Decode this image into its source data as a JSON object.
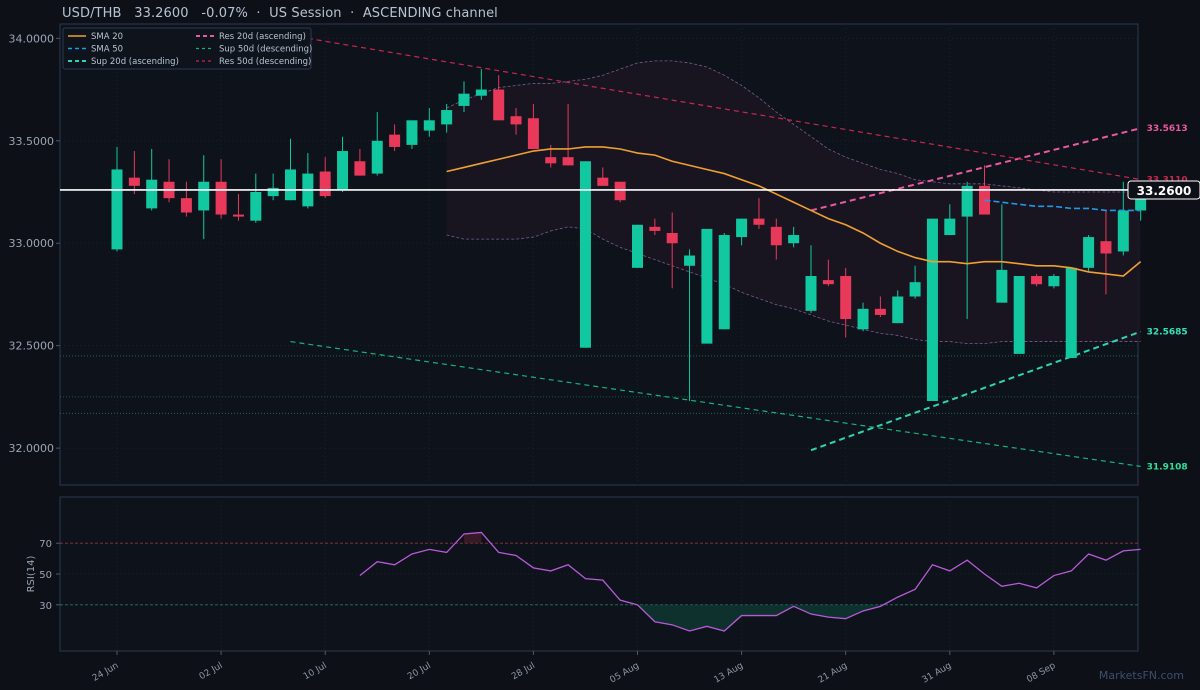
{
  "header": {
    "symbol": "USD/THB",
    "price": "33.2600",
    "change": "-0.07%",
    "session": "US Session",
    "channel": "ASCENDING channel"
  },
  "watermark": "MarketsFN.com",
  "colors": {
    "background": "#0d1017",
    "up": "#12c8a0",
    "down": "#e8395a",
    "sma20": "#f0a030",
    "sma50": "#1e9be8",
    "sup20": "#2dd4b0",
    "res20": "#e85aa0",
    "sup50": "#18b27a",
    "res50": "#c8284e",
    "rsi": "#b85ad8",
    "price_line": "#ffffff",
    "band": "#7a5a90"
  },
  "chart_data": [
    {
      "type": "candlestick",
      "x_tick_labels": [
        "24 Jun",
        "02 Jul",
        "10 Jul",
        "20 Jul",
        "28 Jul",
        "05 Aug",
        "13 Aug",
        "21 Aug",
        "31 Aug",
        "08 Sep"
      ],
      "x_tick_index": [
        0,
        6,
        12,
        18,
        24,
        30,
        36,
        42,
        48,
        54
      ],
      "y_tick_labels": [
        "32.0000",
        "32.5000",
        "33.0000",
        "33.5000",
        "34.0000"
      ],
      "ylim": [
        31.82,
        34.07
      ],
      "candles": [
        {
          "o": 32.97,
          "h": 33.47,
          "l": 32.96,
          "c": 33.36
        },
        {
          "o": 33.32,
          "h": 33.45,
          "l": 33.24,
          "c": 33.28
        },
        {
          "o": 33.17,
          "h": 33.46,
          "l": 33.16,
          "c": 33.31
        },
        {
          "o": 33.3,
          "h": 33.41,
          "l": 33.2,
          "c": 33.22
        },
        {
          "o": 33.22,
          "h": 33.3,
          "l": 33.13,
          "c": 33.15
        },
        {
          "o": 33.16,
          "h": 33.43,
          "l": 33.02,
          "c": 33.3
        },
        {
          "o": 33.3,
          "h": 33.41,
          "l": 33.12,
          "c": 33.14
        },
        {
          "o": 33.14,
          "h": 33.24,
          "l": 33.11,
          "c": 33.13
        },
        {
          "o": 33.11,
          "h": 33.34,
          "l": 33.1,
          "c": 33.25
        },
        {
          "o": 33.23,
          "h": 33.34,
          "l": 33.21,
          "c": 33.27
        },
        {
          "o": 33.21,
          "h": 33.51,
          "l": 33.21,
          "c": 33.36
        },
        {
          "o": 33.18,
          "h": 33.44,
          "l": 33.17,
          "c": 33.34
        },
        {
          "o": 33.35,
          "h": 33.42,
          "l": 33.22,
          "c": 33.23
        },
        {
          "o": 33.26,
          "h": 33.52,
          "l": 33.25,
          "c": 33.45
        },
        {
          "o": 33.4,
          "h": 33.46,
          "l": 33.33,
          "c": 33.33
        },
        {
          "o": 33.34,
          "h": 33.64,
          "l": 33.33,
          "c": 33.5
        },
        {
          "o": 33.53,
          "h": 33.58,
          "l": 33.45,
          "c": 33.47
        },
        {
          "o": 33.48,
          "h": 33.59,
          "l": 33.46,
          "c": 33.6
        },
        {
          "o": 33.55,
          "h": 33.66,
          "l": 33.52,
          "c": 33.6
        },
        {
          "o": 33.58,
          "h": 33.68,
          "l": 33.54,
          "c": 33.65
        },
        {
          "o": 33.67,
          "h": 33.79,
          "l": 33.64,
          "c": 33.73
        },
        {
          "o": 33.72,
          "h": 33.85,
          "l": 33.7,
          "c": 33.75
        },
        {
          "o": 33.75,
          "h": 33.82,
          "l": 33.6,
          "c": 33.6
        },
        {
          "o": 33.62,
          "h": 33.66,
          "l": 33.53,
          "c": 33.58
        },
        {
          "o": 33.61,
          "h": 33.68,
          "l": 33.46,
          "c": 33.46
        },
        {
          "o": 33.42,
          "h": 33.48,
          "l": 33.37,
          "c": 33.39
        },
        {
          "o": 33.42,
          "h": 33.68,
          "l": 33.38,
          "c": 33.38
        },
        {
          "o": 32.49,
          "h": 33.4,
          "l": 32.49,
          "c": 33.4
        },
        {
          "o": 33.32,
          "h": 33.37,
          "l": 33.28,
          "c": 33.28
        },
        {
          "o": 33.3,
          "h": 33.3,
          "l": 33.2,
          "c": 33.21
        },
        {
          "o": 32.88,
          "h": 33.09,
          "l": 32.88,
          "c": 33.09
        },
        {
          "o": 33.08,
          "h": 33.12,
          "l": 33.04,
          "c": 33.06
        },
        {
          "o": 33.05,
          "h": 33.15,
          "l": 32.78,
          "c": 33.0
        },
        {
          "o": 32.89,
          "h": 32.97,
          "l": 32.23,
          "c": 32.94
        },
        {
          "o": 32.51,
          "h": 33.07,
          "l": 32.51,
          "c": 33.07
        },
        {
          "o": 32.58,
          "h": 33.05,
          "l": 32.58,
          "c": 33.04
        },
        {
          "o": 33.03,
          "h": 33.12,
          "l": 32.99,
          "c": 33.12
        },
        {
          "o": 33.12,
          "h": 33.22,
          "l": 33.07,
          "c": 33.09
        },
        {
          "o": 33.08,
          "h": 33.12,
          "l": 32.92,
          "c": 32.99
        },
        {
          "o": 33.0,
          "h": 33.08,
          "l": 32.98,
          "c": 33.04
        },
        {
          "o": 32.67,
          "h": 32.99,
          "l": 32.66,
          "c": 32.84
        },
        {
          "o": 32.82,
          "h": 32.92,
          "l": 32.79,
          "c": 32.8
        },
        {
          "o": 32.84,
          "h": 32.88,
          "l": 32.54,
          "c": 32.63
        },
        {
          "o": 32.58,
          "h": 32.71,
          "l": 32.57,
          "c": 32.68
        },
        {
          "o": 32.68,
          "h": 32.74,
          "l": 32.64,
          "c": 32.65
        },
        {
          "o": 32.61,
          "h": 32.77,
          "l": 32.61,
          "c": 32.74
        },
        {
          "o": 32.74,
          "h": 32.89,
          "l": 32.73,
          "c": 32.81
        },
        {
          "o": 32.23,
          "h": 33.12,
          "l": 32.23,
          "c": 33.12
        },
        {
          "o": 33.04,
          "h": 33.19,
          "l": 33.04,
          "c": 33.12
        },
        {
          "o": 33.13,
          "h": 33.3,
          "l": 32.63,
          "c": 33.28
        },
        {
          "o": 33.28,
          "h": 33.38,
          "l": 33.14,
          "c": 33.14
        },
        {
          "o": 32.71,
          "h": 33.19,
          "l": 32.71,
          "c": 32.87
        },
        {
          "o": 32.46,
          "h": 32.84,
          "l": 32.46,
          "c": 32.84
        },
        {
          "o": 32.84,
          "h": 32.85,
          "l": 32.79,
          "c": 32.8
        },
        {
          "o": 32.79,
          "h": 32.85,
          "l": 32.78,
          "c": 32.84
        },
        {
          "o": 32.44,
          "h": 32.88,
          "l": 32.44,
          "c": 32.88
        },
        {
          "o": 32.88,
          "h": 33.04,
          "l": 32.86,
          "c": 33.03
        },
        {
          "o": 33.01,
          "h": 33.16,
          "l": 32.75,
          "c": 32.95
        },
        {
          "o": 32.96,
          "h": 33.3,
          "l": 32.94,
          "c": 33.16
        },
        {
          "o": 33.16,
          "h": 33.3,
          "l": 33.11,
          "c": 33.29
        }
      ],
      "sma20": {
        "start": 19,
        "values": [
          33.35,
          33.37,
          33.39,
          33.41,
          33.43,
          33.45,
          33.46,
          33.46,
          33.47,
          33.47,
          33.46,
          33.44,
          33.43,
          33.4,
          33.38,
          33.36,
          33.34,
          33.31,
          33.28,
          33.24,
          33.2,
          33.16,
          33.12,
          33.09,
          33.05,
          33.0,
          32.96,
          32.93,
          32.91,
          32.91,
          32.9,
          32.91,
          32.91,
          32.9,
          32.89,
          32.89,
          32.88,
          32.86,
          32.85,
          32.84,
          32.91
        ]
      },
      "sma50": {
        "start": 50,
        "values": [
          33.21,
          33.2,
          33.19,
          33.18,
          33.18,
          33.17,
          33.17,
          33.16,
          33.16,
          33.16
        ]
      },
      "bollinger_upper": {
        "start": 19,
        "values": [
          33.66,
          33.7,
          33.73,
          33.76,
          33.77,
          33.78,
          33.78,
          33.79,
          33.8,
          33.82,
          33.85,
          33.88,
          33.89,
          33.89,
          33.88,
          33.86,
          33.82,
          33.77,
          33.71,
          33.64,
          33.58,
          33.52,
          33.46,
          33.42,
          33.39,
          33.36,
          33.34,
          33.31,
          33.3,
          33.29,
          33.29,
          33.29,
          33.28,
          33.27,
          33.26,
          33.25,
          33.25,
          33.25,
          33.25,
          33.25,
          33.25
        ]
      },
      "bollinger_lower": {
        "start": 19,
        "values": [
          33.04,
          33.02,
          33.02,
          33.02,
          33.02,
          33.03,
          33.06,
          33.08,
          33.07,
          33.02,
          32.98,
          32.95,
          32.92,
          32.89,
          32.86,
          32.83,
          32.8,
          32.76,
          32.73,
          32.7,
          32.68,
          32.65,
          32.62,
          32.6,
          32.58,
          32.56,
          32.55,
          32.53,
          32.52,
          32.52,
          32.51,
          32.51,
          32.52,
          32.52,
          32.52,
          32.52,
          32.52,
          32.52,
          32.52,
          32.52,
          32.52
        ]
      },
      "trendlines": [
        {
          "name": "Res 20d (ascending)",
          "x0": 40,
          "y0": 33.16,
          "x1": 59,
          "y1": 33.5613,
          "end_label": "33.5613"
        },
        {
          "name": "Sup 20d (ascending)",
          "x0": 40,
          "y0": 31.99,
          "x1": 59,
          "y1": 32.5685,
          "end_label": "32.5685"
        },
        {
          "name": "Res 50d (descending)",
          "x0": 11,
          "y0": 34.0,
          "x1": 59,
          "y1": 33.311,
          "end_label": "33.3110"
        },
        {
          "name": "Sup 50d (descending)",
          "x0": 10,
          "y0": 32.52,
          "x1": 59,
          "y1": 31.9108,
          "end_label": "31.9108"
        }
      ],
      "horizontal_levels": [
        32.45,
        32.25,
        32.17
      ],
      "current_price": 33.26,
      "current_price_label": "33.2600",
      "legend": [
        "SMA 20",
        "SMA 50",
        "Sup 20d (ascending)",
        "Res 20d (ascending)",
        "Sup 50d (descending)",
        "Res 50d (descending)"
      ],
      "legend_position": "top-left"
    },
    {
      "type": "line",
      "ylabel": "RSI(14)",
      "y_tick_labels": [
        "30",
        "50",
        "70"
      ],
      "ylim": [
        0,
        100
      ],
      "overbought": 70,
      "oversold": 30,
      "start": 14,
      "values": [
        49,
        58,
        56,
        63,
        66,
        64,
        76,
        77,
        64,
        62,
        54,
        52,
        56,
        47,
        46,
        33,
        30,
        19,
        17,
        13,
        16,
        13,
        23,
        23,
        23,
        29,
        24,
        22,
        21,
        26,
        29,
        35,
        40,
        56,
        52,
        59,
        50,
        42,
        44,
        41,
        49,
        52,
        63,
        59,
        65,
        66
      ]
    }
  ]
}
